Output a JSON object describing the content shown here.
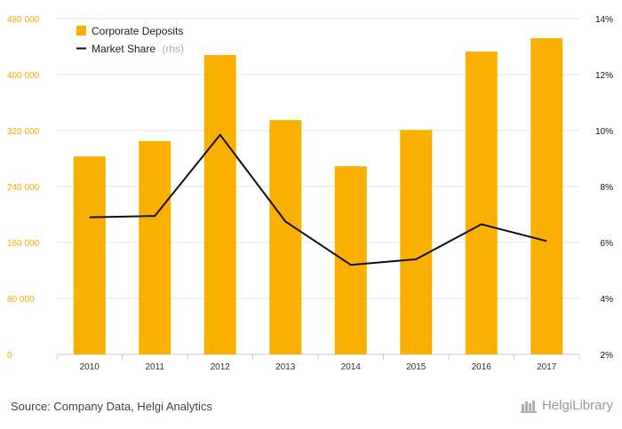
{
  "chart_data": {
    "type": "bar+line",
    "categories": [
      "2010",
      "2011",
      "2012",
      "2013",
      "2014",
      "2015",
      "2016",
      "2017"
    ],
    "series": [
      {
        "name": "Corporate Deposits",
        "kind": "bar",
        "axis": "left",
        "values": [
          283000,
          305000,
          428000,
          335000,
          269000,
          321000,
          433000,
          452000
        ]
      },
      {
        "name": "Market Share",
        "suffix": "(rhs)",
        "kind": "line",
        "axis": "right",
        "values": [
          6.9,
          6.95,
          9.85,
          6.75,
          5.2,
          5.4,
          6.65,
          6.05
        ]
      }
    ],
    "left_axis": {
      "range": [
        0,
        480000
      ],
      "ticks": [
        0,
        80000,
        160000,
        240000,
        320000,
        400000,
        480000
      ],
      "tick_labels": [
        "0",
        "80 000",
        "160 000",
        "240 000",
        "320 000",
        "400 000",
        "480 000"
      ]
    },
    "right_axis": {
      "range": [
        2,
        14
      ],
      "ticks": [
        2,
        4,
        6,
        8,
        10,
        12,
        14
      ],
      "tick_labels": [
        "2%",
        "4%",
        "6%",
        "8%",
        "10%",
        "12%",
        "14%"
      ]
    },
    "grid": true,
    "legend_position": "top-left",
    "colors": {
      "bar": "#f9b000",
      "line": "#111111",
      "grid": "#e6e6e6",
      "left_ticks": "#f5ad00"
    }
  },
  "footer": {
    "source": "Source: Company Data, Helgi Analytics",
    "brand": "HelgiLibrary",
    "brand_icon": "helgi-library-icon"
  }
}
